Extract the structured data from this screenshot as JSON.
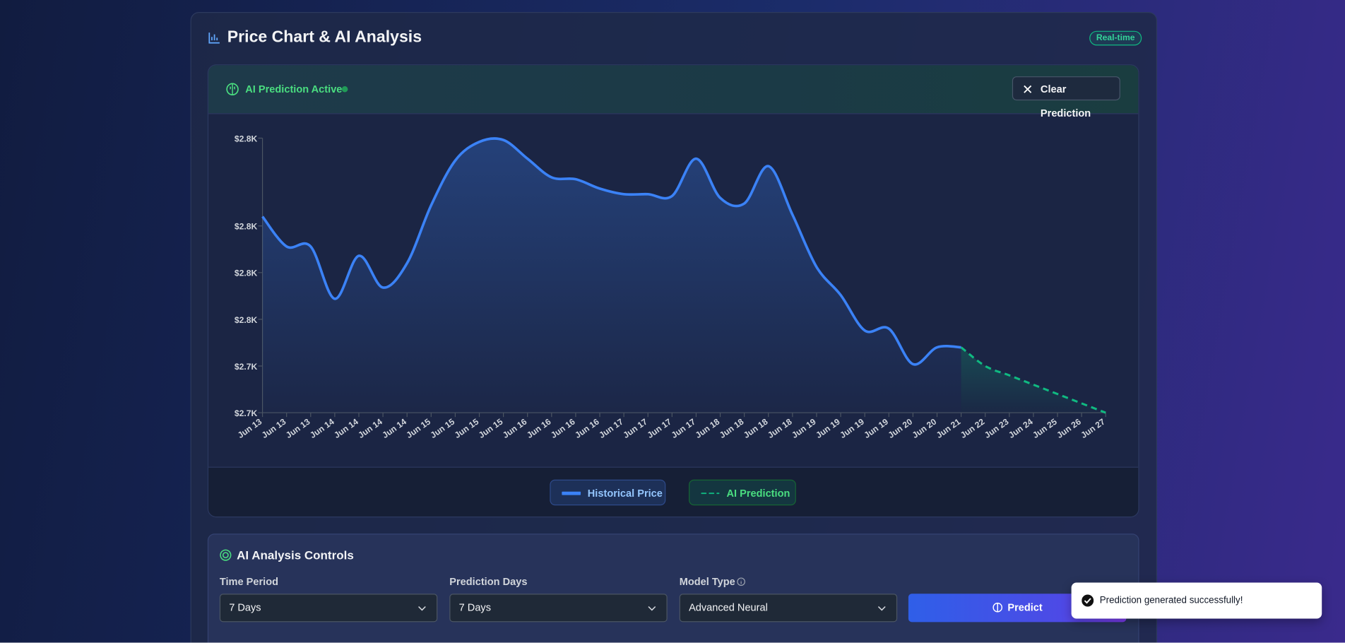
{
  "header": {
    "title": "Price Chart & AI Analysis",
    "badge": "Real-time"
  },
  "prediction_bar": {
    "status": "AI Prediction Active",
    "clear_button": "Clear Prediction"
  },
  "chart_data": {
    "type": "line",
    "categories": [
      "Jun 13",
      "Jun 13",
      "Jun 13",
      "Jun 14",
      "Jun 14",
      "Jun 14",
      "Jun 14",
      "Jun 15",
      "Jun 15",
      "Jun 15",
      "Jun 15",
      "Jun 16",
      "Jun 16",
      "Jun 16",
      "Jun 16",
      "Jun 17",
      "Jun 17",
      "Jun 17",
      "Jun 17",
      "Jun 18",
      "Jun 18",
      "Jun 18",
      "Jun 18",
      "Jun 19",
      "Jun 19",
      "Jun 19",
      "Jun 19",
      "Jun 20",
      "Jun 20",
      "Jun 21",
      "Jun 22",
      "Jun 23",
      "Jun 24",
      "Jun 25",
      "Jun 26",
      "Jun 27"
    ],
    "series": [
      {
        "name": "Historical Price",
        "color": "#3b82f6",
        "values": [
          2805,
          2789,
          2789,
          2761,
          2784,
          2767,
          2780,
          2811,
          2835,
          2845,
          2846,
          2836,
          2826,
          2825,
          2820,
          2817,
          2817,
          2816,
          2836,
          2815,
          2812,
          2832,
          2806,
          2778,
          2763,
          2744,
          2745,
          2726,
          2735,
          2735,
          null,
          null,
          null,
          null,
          null,
          null
        ]
      },
      {
        "name": "AI Prediction",
        "color": "#10b981",
        "dashed": true,
        "values": [
          null,
          null,
          null,
          null,
          null,
          null,
          null,
          null,
          null,
          null,
          null,
          null,
          null,
          null,
          null,
          null,
          null,
          null,
          null,
          null,
          null,
          null,
          null,
          null,
          null,
          null,
          null,
          null,
          null,
          2735,
          2725,
          2720,
          2715,
          2710,
          2705,
          2700
        ]
      }
    ],
    "ylim": [
      2700,
      2847
    ],
    "yticks": [
      {
        "value": 2700,
        "label": "$2.7K"
      },
      {
        "value": 2725,
        "label": "$2.7K"
      },
      {
        "value": 2750,
        "label": "$2.8K"
      },
      {
        "value": 2775,
        "label": "$2.8K"
      },
      {
        "value": 2800,
        "label": "$2.8K"
      },
      {
        "value": 2847,
        "label": "$2.8K"
      }
    ]
  },
  "controls": {
    "title": "AI Analysis Controls",
    "fields": [
      {
        "label": "Time Period",
        "value": "7 Days"
      },
      {
        "label": "Prediction Days",
        "value": "7 Days"
      },
      {
        "label": "Model Type",
        "value": "Advanced Neural"
      }
    ],
    "predict_button": "Predict"
  },
  "toast": "Prediction generated successfully!"
}
